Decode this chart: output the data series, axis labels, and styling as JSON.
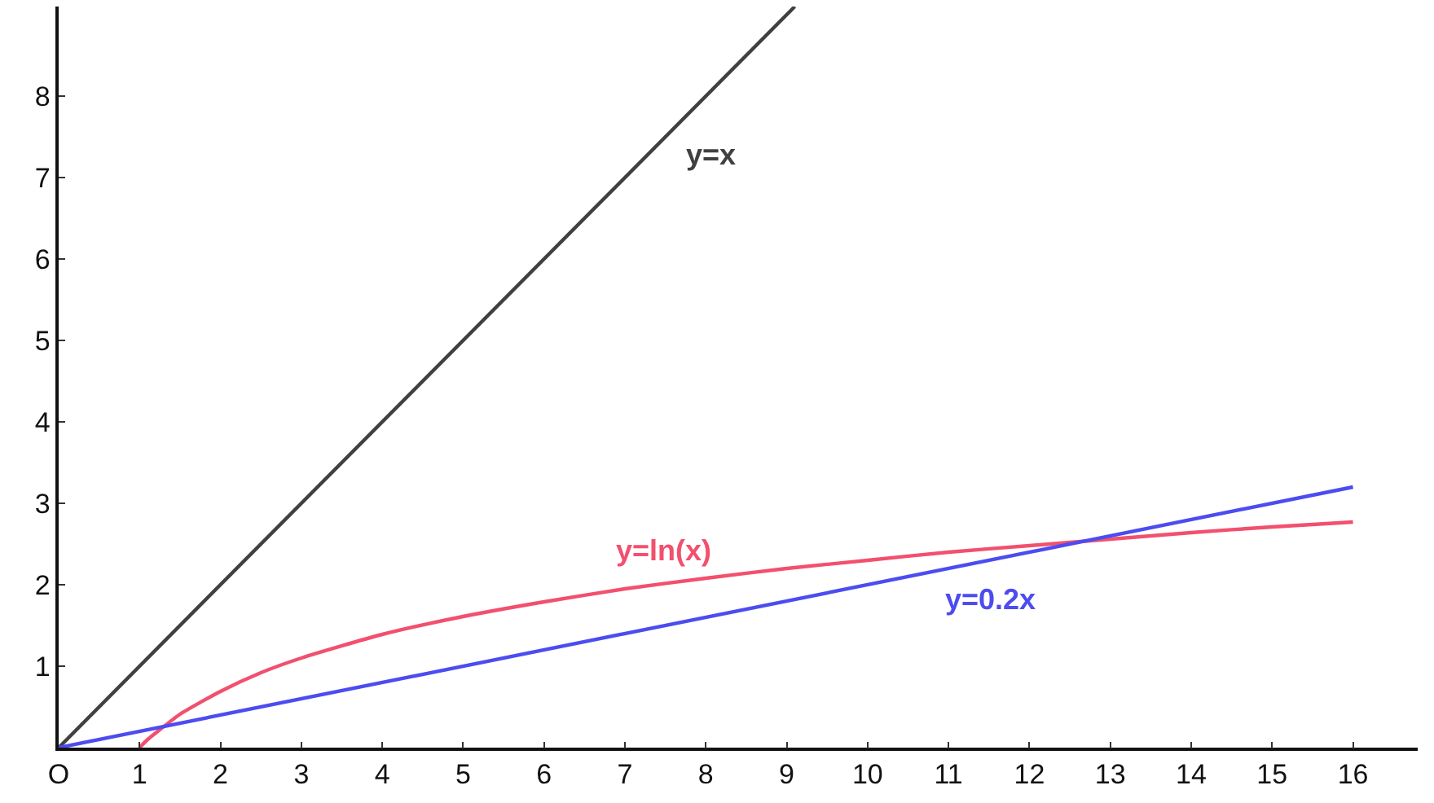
{
  "chart_data": {
    "type": "line",
    "series": [
      {
        "name": "y=x",
        "color": "#404040",
        "x": [
          0,
          9.1
        ],
        "values": [
          0,
          9.1
        ]
      },
      {
        "name": "y=ln(x)",
        "color": "#f2506e",
        "x": [
          1,
          1.1,
          1.25,
          1.5,
          2,
          2.5,
          3,
          4,
          5,
          6,
          7,
          8,
          9,
          10,
          11,
          12,
          13,
          14,
          15,
          16
        ],
        "values": [
          0,
          0.1,
          0.22,
          0.41,
          0.69,
          0.92,
          1.1,
          1.39,
          1.61,
          1.79,
          1.95,
          2.08,
          2.2,
          2.3,
          2.4,
          2.48,
          2.56,
          2.64,
          2.71,
          2.77
        ]
      },
      {
        "name": "y=0.2x",
        "color": "#4c4cf0",
        "x": [
          0,
          16
        ],
        "values": [
          0,
          3.2
        ]
      }
    ],
    "xlim": [
      0,
      16.8
    ],
    "ylim": [
      0,
      9.1
    ],
    "xticks": [
      {
        "value": 0,
        "label": "O"
      },
      1,
      2,
      3,
      4,
      5,
      6,
      7,
      8,
      9,
      10,
      11,
      12,
      13,
      14,
      15,
      16
    ],
    "yticks": [
      {
        "value": 0,
        "label": null
      },
      1,
      2,
      3,
      4,
      5,
      6,
      7,
      8
    ],
    "grid": false,
    "legend": false,
    "marker": "none",
    "line_style": "solid"
  }
}
